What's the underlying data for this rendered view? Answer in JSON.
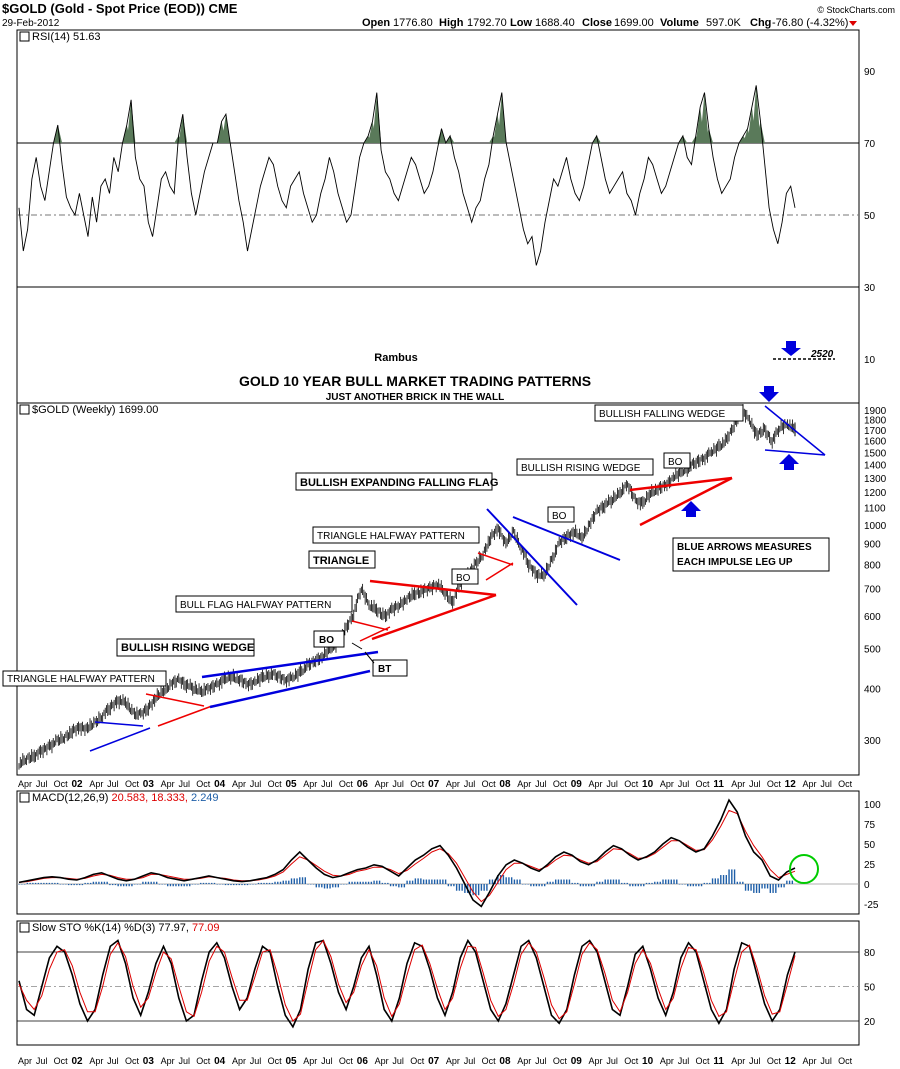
{
  "header": {
    "ticker_line": "$GOLD (Gold - Spot Price (EOD)) CME",
    "date": "29-Feb-2012",
    "open_label": "Open",
    "open": "1776.80",
    "high_label": "High",
    "high": "1792.70",
    "low_label": "Low",
    "low": "1688.40",
    "close_label": "Close",
    "close": "1699.00",
    "volume_label": "Volume",
    "volume": "597.0K",
    "chg_label": "Chg",
    "chg": "-76.80 (-4.32%)",
    "brand": "© StockCharts.com"
  },
  "author": "Rambus",
  "title": "GOLD 10 YEAR BULL MARKET TRADING PATTERNS",
  "subtitle": "JUST ANOTHER BRICK IN THE WALL",
  "target": "2520",
  "x_axis_labels": [
    "Apr",
    "Jul",
    "Oct",
    "02",
    "Apr",
    "Jul",
    "Oct",
    "03",
    "Apr",
    "Jul",
    "Oct",
    "04",
    "Apr",
    "Jul",
    "Oct",
    "05",
    "Apr",
    "Jul",
    "Oct",
    "06",
    "Apr",
    "Jul",
    "Oct",
    "07",
    "Apr",
    "Jul",
    "Oct",
    "08",
    "Apr",
    "Jul",
    "Oct",
    "09",
    "Apr",
    "Jul",
    "Oct",
    "10",
    "Apr",
    "Jul",
    "Oct",
    "11",
    "Apr",
    "Jul",
    "Oct",
    "12",
    "Apr",
    "Jul",
    "Oct"
  ],
  "colors": {
    "blue": "#0000dd",
    "red": "#ee0000",
    "rsi_fill": "#5a7a5a",
    "macd_hist": "#1f5fa8",
    "macd_signal": "#dd0000",
    "circle": "#00cc00"
  },
  "annotations": {
    "triangle_halfway_1": "TRIANGLE HALFWAY PATTERN",
    "bullish_rising_wedge": "BULLISH RISING WEDGE",
    "bull_flag_halfway": "BULL FLAG HALFWAY PATTERN",
    "triangle": "TRIANGLE",
    "triangle_halfway_2": "TRIANGLE HALFWAY PATTERN",
    "bullish_expanding": "BULLISH EXPANDING FALLING FLAG",
    "bullish_rising_wedge_2": "BULLISH RISING WEDGE",
    "bullish_falling_wedge": "BULLISH FALLING WEDGE",
    "bo": "BO",
    "bt": "BT",
    "blue_arrows_1": "BLUE ARROWS MEASURES",
    "blue_arrows_2": "EACH IMPULSE LEG UP"
  },
  "chart_data": [
    {
      "type": "line",
      "panel": "RSI",
      "legend": "RSI(14) 51.63",
      "ylim": [
        0,
        100
      ],
      "y_ticks": [
        90,
        70,
        50,
        30,
        10
      ],
      "levels": [
        70,
        50,
        30
      ],
      "x_start_year": 2001.25,
      "x_end_year": 2012.85,
      "values": [
        52,
        40,
        46,
        60,
        66,
        58,
        54,
        62,
        70,
        75,
        64,
        55,
        52,
        50,
        56,
        50,
        44,
        55,
        48,
        58,
        60,
        56,
        66,
        62,
        70,
        75,
        82,
        66,
        60,
        58,
        48,
        44,
        52,
        60,
        62,
        58,
        56,
        72,
        78,
        66,
        56,
        50,
        56,
        62,
        66,
        70,
        70,
        76,
        78,
        70,
        62,
        54,
        48,
        40,
        46,
        52,
        58,
        62,
        66,
        64,
        58,
        54,
        52,
        58,
        60,
        62,
        56,
        52,
        48,
        50,
        56,
        60,
        66,
        62,
        56,
        52,
        48,
        50,
        58,
        66,
        70,
        72,
        76,
        84,
        68,
        62,
        60,
        56,
        54,
        58,
        62,
        66,
        64,
        60,
        56,
        58,
        62,
        68,
        74,
        70,
        72,
        66,
        62,
        56,
        52,
        48,
        52,
        54,
        60,
        64,
        72,
        78,
        84,
        70,
        64,
        58,
        52,
        46,
        42,
        44,
        36,
        40,
        48,
        54,
        60,
        58,
        62,
        66,
        60,
        56,
        54,
        58,
        64,
        70,
        72,
        66,
        60,
        56,
        58,
        60,
        62,
        56,
        54,
        50,
        56,
        60,
        66,
        64,
        60,
        56,
        58,
        62,
        66,
        70,
        72,
        66,
        64,
        72,
        80,
        84,
        74,
        66,
        60,
        56,
        58,
        60,
        66,
        70,
        72,
        74,
        80,
        86,
        76,
        64,
        52,
        46,
        42,
        48,
        56,
        58,
        52
      ]
    },
    {
      "type": "line",
      "panel": "price",
      "legend": "$GOLD (Weekly) 1699.00",
      "scale": "log",
      "y_ticks": [
        1900,
        1800,
        1700,
        1600,
        1500,
        1400,
        1300,
        1200,
        1100,
        1000,
        900,
        800,
        700,
        600,
        500,
        400,
        300
      ],
      "ylim": [
        250,
        1950
      ],
      "x_start_year": 2001.25,
      "x_end_year": 2012.85,
      "values": [
        262,
        270,
        275,
        282,
        290,
        298,
        305,
        315,
        322,
        320,
        330,
        345,
        360,
        375,
        370,
        350,
        345,
        360,
        380,
        395,
        410,
        420,
        410,
        400,
        395,
        400,
        410,
        420,
        430,
        420,
        410,
        415,
        425,
        435,
        430,
        420,
        425,
        440,
        455,
        470,
        480,
        500,
        520,
        560,
        610,
        700,
        640,
        620,
        600,
        620,
        640,
        660,
        680,
        690,
        700,
        720,
        680,
        650,
        720,
        760,
        800,
        850,
        930,
        980,
        900,
        960,
        880,
        800,
        760,
        750,
        820,
        900,
        940,
        960,
        930,
        1000,
        1080,
        1120,
        1150,
        1200,
        1250,
        1150,
        1120,
        1200,
        1220,
        1250,
        1300,
        1340,
        1380,
        1420,
        1450,
        1500,
        1550,
        1600,
        1750,
        1900,
        1800,
        1650,
        1700,
        1600,
        1720,
        1760,
        1699
      ]
    },
    {
      "type": "line",
      "panel": "MACD",
      "legend": "MACD(12,26,9) 20.583, 18.333, 2.249",
      "legend_parts": [
        "MACD(12,26,9)",
        "20.583,",
        "18.333,",
        "2.249"
      ],
      "ylim": [
        -30,
        110
      ],
      "y_ticks": [
        100,
        75,
        50,
        25,
        0,
        -25
      ],
      "x_start_year": 2001.25,
      "x_end_year": 2012.85,
      "series": [
        {
          "values": [
            2,
            4,
            6,
            8,
            9,
            8,
            6,
            5,
            8,
            12,
            14,
            10,
            6,
            4,
            6,
            10,
            14,
            12,
            8,
            6,
            4,
            6,
            8,
            10,
            8,
            6,
            4,
            3,
            4,
            6,
            8,
            12,
            18,
            30,
            40,
            30,
            20,
            12,
            8,
            10,
            14,
            18,
            20,
            24,
            22,
            16,
            10,
            20,
            30,
            36,
            44,
            48,
            36,
            20,
            0,
            -20,
            -28,
            -10,
            10,
            24,
            30,
            26,
            20,
            16,
            24,
            34,
            40,
            36,
            28,
            24,
            30,
            40,
            48,
            44,
            36,
            30,
            34,
            40,
            50,
            58,
            54,
            46,
            40,
            44,
            60,
            80,
            105,
            90,
            60,
            40,
            30,
            10,
            5,
            15,
            20
          ]
        },
        {
          "values": [
            2,
            3,
            5,
            7,
            8,
            8,
            7,
            6,
            7,
            10,
            12,
            11,
            8,
            6,
            6,
            8,
            12,
            12,
            10,
            8,
            6,
            6,
            7,
            9,
            8,
            7,
            5,
            4,
            4,
            5,
            7,
            10,
            15,
            25,
            34,
            30,
            23,
            16,
            11,
            10,
            12,
            16,
            18,
            21,
            21,
            18,
            13,
            17,
            25,
            32,
            40,
            44,
            38,
            26,
            8,
            -10,
            -22,
            -14,
            2,
            18,
            26,
            26,
            22,
            18,
            22,
            30,
            36,
            35,
            30,
            26,
            28,
            36,
            44,
            43,
            38,
            32,
            33,
            38,
            46,
            54,
            54,
            48,
            42,
            43,
            55,
            72,
            92,
            88,
            66,
            48,
            34,
            18,
            8,
            12,
            16
          ]
        }
      ]
    },
    {
      "type": "line",
      "panel": "Slow STO",
      "legend": "Slow STO %K(14) %D(3) 77.97, 77.09",
      "legend_parts": [
        "Slow STO %K(14) %D(3)",
        "77.97,",
        "77.09"
      ],
      "ylim": [
        0,
        100
      ],
      "y_ticks": [
        80,
        50,
        20
      ],
      "x_start_year": 2001.25,
      "x_end_year": 2012.85,
      "series": [
        {
          "values": [
            55,
            30,
            25,
            50,
            75,
            85,
            80,
            60,
            35,
            20,
            30,
            60,
            85,
            90,
            70,
            40,
            25,
            45,
            70,
            85,
            70,
            40,
            20,
            25,
            55,
            80,
            88,
            75,
            50,
            30,
            40,
            65,
            85,
            80,
            50,
            25,
            15,
            30,
            65,
            88,
            90,
            70,
            45,
            30,
            50,
            75,
            85,
            60,
            30,
            20,
            40,
            70,
            88,
            85,
            65,
            40,
            25,
            45,
            75,
            90,
            80,
            55,
            30,
            20,
            35,
            60,
            85,
            90,
            75,
            50,
            25,
            18,
            30,
            60,
            85,
            90,
            80,
            55,
            30,
            25,
            50,
            78,
            85,
            65,
            40,
            25,
            45,
            75,
            88,
            80,
            55,
            30,
            18,
            30,
            65,
            88,
            85,
            60,
            35,
            20,
            30,
            60,
            80
          ]
        },
        {
          "values": [
            52,
            38,
            30,
            42,
            65,
            80,
            82,
            68,
            45,
            28,
            28,
            50,
            78,
            88,
            76,
            50,
            32,
            40,
            62,
            80,
            74,
            50,
            28,
            24,
            45,
            72,
            85,
            80,
            58,
            38,
            38,
            58,
            80,
            82,
            60,
            34,
            20,
            26,
            55,
            82,
            90,
            76,
            52,
            36,
            45,
            68,
            82,
            68,
            40,
            24,
            35,
            60,
            82,
            86,
            70,
            48,
            30,
            40,
            66,
            85,
            84,
            62,
            38,
            24,
            30,
            52,
            78,
            88,
            80,
            58,
            34,
            22,
            28,
            52,
            78,
            88,
            82,
            62,
            38,
            28,
            45,
            70,
            82,
            70,
            48,
            30,
            40,
            66,
            84,
            82,
            62,
            38,
            24,
            28,
            55,
            80,
            86,
            66,
            42,
            26,
            28,
            52,
            77
          ]
        }
      ]
    }
  ]
}
